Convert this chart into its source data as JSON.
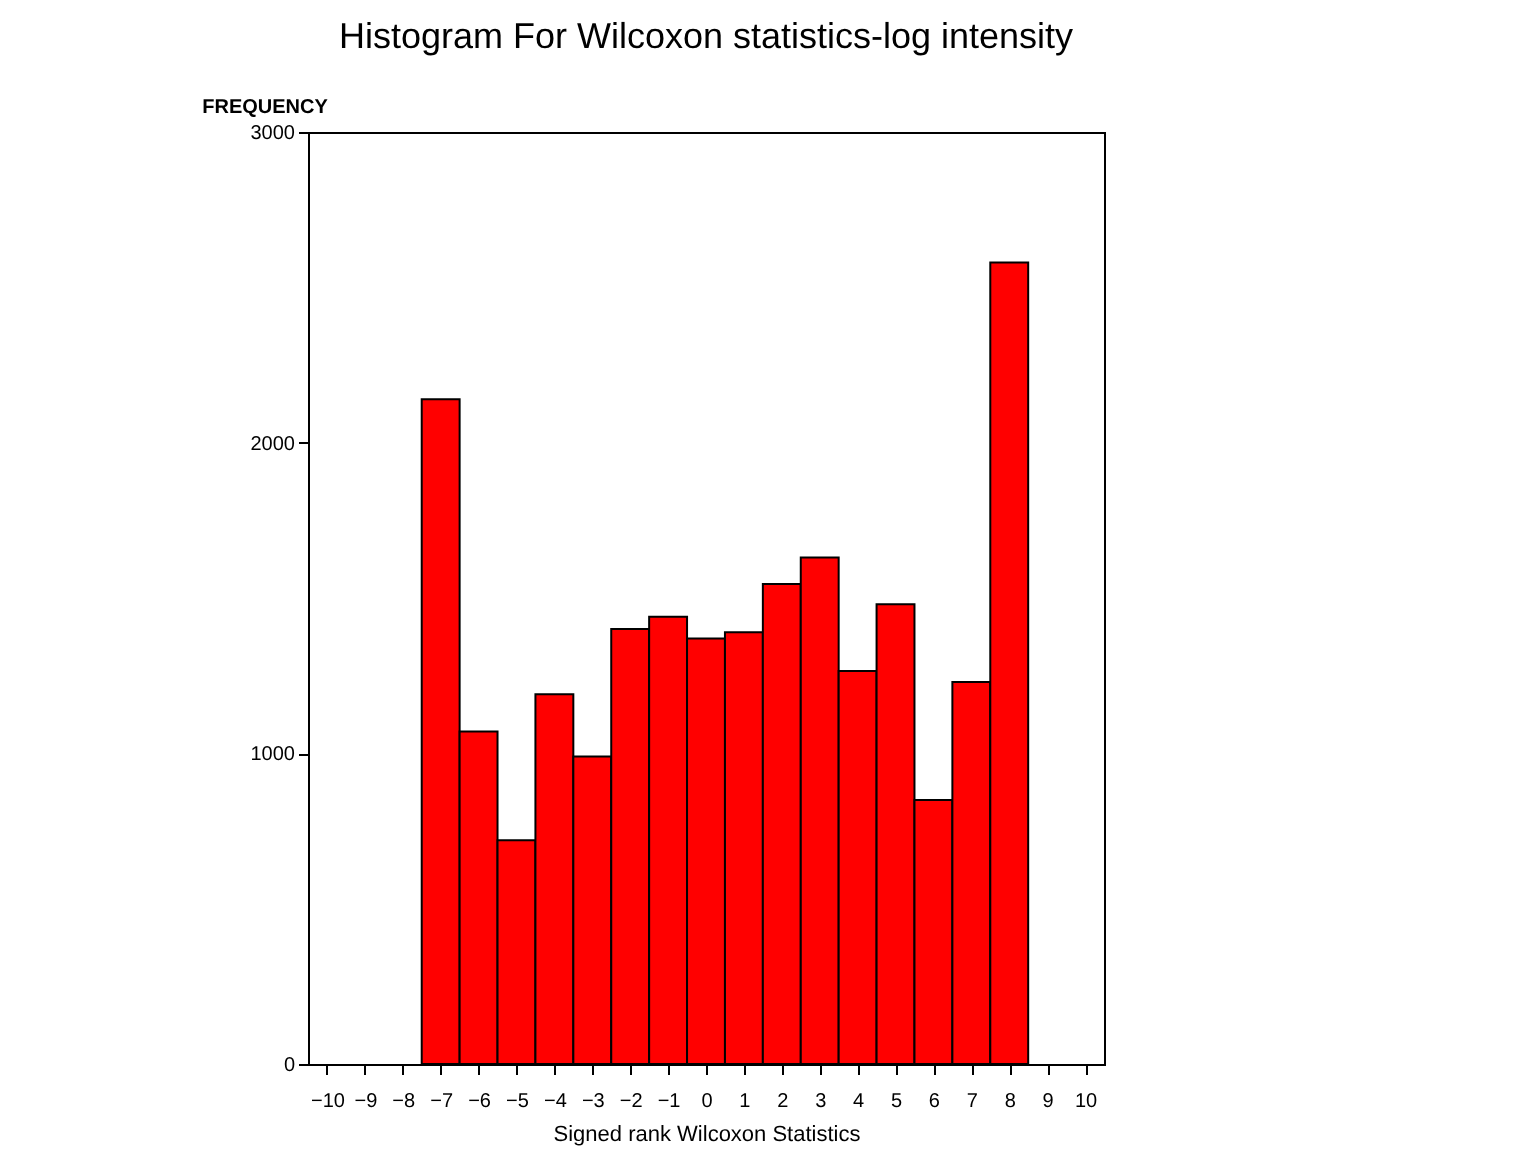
{
  "chart_data": {
    "type": "histogram",
    "title": "Histogram For Wilcoxon statistics-log intensity",
    "xlabel": "Signed rank Wilcoxon Statistics",
    "ylabel": "FREQUENCY",
    "bins": [
      -7.5,
      -6.5,
      -5.5,
      -4.5,
      -3.5,
      -2.5,
      -1.5,
      -0.5,
      0.5,
      1.5,
      2.5,
      3.5,
      4.5,
      5.5,
      6.5,
      7.5,
      8.5
    ],
    "values": [
      2140,
      1070,
      720,
      1190,
      990,
      1400,
      1440,
      1370,
      1390,
      1545,
      1630,
      1265,
      1480,
      850,
      1230,
      2580
    ],
    "color": "#ff0000",
    "xlim": [
      -10.5,
      10.5
    ],
    "xticks": [
      -10,
      -9,
      -8,
      -7,
      -6,
      -5,
      -4,
      -3,
      -2,
      -1,
      0,
      1,
      2,
      3,
      4,
      5,
      6,
      7,
      8,
      9,
      10
    ],
    "ylim": [
      0,
      3000
    ],
    "yticks": [
      0,
      1000,
      2000,
      3000
    ],
    "grid": false
  }
}
